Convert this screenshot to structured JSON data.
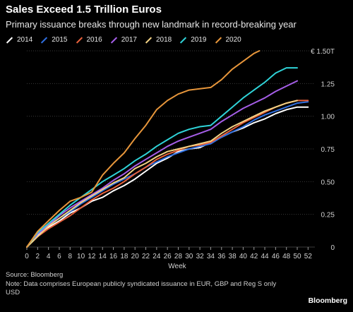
{
  "header": {
    "title": "Sales Exceed 1.5 Trillion Euros",
    "subtitle": "Primary issuance breaks through new landmark in record-breaking year"
  },
  "footer": {
    "source": "Source: Bloomberg",
    "note": "Note: Data comprises European publicly syndicated issuance in EUR, GBP and Reg S only USD",
    "brand": "Bloomberg"
  },
  "chart_data": {
    "type": "line",
    "title": "Sales Exceed 1.5 Trillion Euros",
    "subtitle": "Primary issuance breaks through new landmark in record-breaking year",
    "xlabel": "Week",
    "ylabel": "",
    "xlim": [
      0,
      53
    ],
    "ylim": [
      0,
      1.5
    ],
    "x_ticks": [
      "0",
      "2",
      "4",
      "6",
      "8",
      "10",
      "12",
      "14",
      "16",
      "18",
      "20",
      "22",
      "24",
      "26",
      "28",
      "30",
      "32",
      "34",
      "36",
      "38",
      "40",
      "42",
      "44",
      "46",
      "48",
      "50",
      "52"
    ],
    "y_ticks": [
      {
        "value": 0,
        "label": "0"
      },
      {
        "value": 0.25,
        "label": "0.25"
      },
      {
        "value": 0.5,
        "label": "0.50"
      },
      {
        "value": 0.75,
        "label": "0.75"
      },
      {
        "value": 1.0,
        "label": "1.00"
      },
      {
        "value": 1.25,
        "label": "1.25"
      },
      {
        "value": 1.5,
        "label": "€ 1.50T"
      }
    ],
    "grid": true,
    "legend_position": "top-left",
    "series": [
      {
        "name": "2014",
        "color": "#ffffff",
        "x": [
          0,
          2,
          4,
          6,
          8,
          10,
          12,
          14,
          16,
          18,
          20,
          22,
          24,
          26,
          28,
          30,
          32,
          34,
          36,
          38,
          40,
          42,
          44,
          46,
          48,
          50,
          52
        ],
        "values": [
          0,
          0.09,
          0.15,
          0.2,
          0.26,
          0.3,
          0.35,
          0.38,
          0.43,
          0.47,
          0.52,
          0.58,
          0.64,
          0.68,
          0.73,
          0.75,
          0.76,
          0.8,
          0.84,
          0.88,
          0.91,
          0.95,
          0.98,
          1.02,
          1.05,
          1.07,
          1.07
        ]
      },
      {
        "name": "2015",
        "color": "#2f6fe0",
        "x": [
          0,
          2,
          4,
          6,
          8,
          10,
          12,
          14,
          16,
          18,
          20,
          22,
          24,
          26,
          28,
          30,
          32,
          34,
          36,
          38,
          40,
          42,
          44,
          46,
          48,
          50,
          52
        ],
        "values": [
          0,
          0.1,
          0.17,
          0.22,
          0.27,
          0.33,
          0.38,
          0.43,
          0.48,
          0.52,
          0.56,
          0.61,
          0.65,
          0.69,
          0.72,
          0.75,
          0.77,
          0.79,
          0.84,
          0.88,
          0.92,
          0.97,
          1.01,
          1.04,
          1.07,
          1.1,
          1.11
        ]
      },
      {
        "name": "2016",
        "color": "#e8613c",
        "x": [
          0,
          2,
          4,
          6,
          8,
          10,
          12,
          14,
          16,
          18,
          20,
          22,
          24,
          26,
          28,
          30,
          32,
          34,
          36,
          38,
          40,
          42,
          44,
          46,
          48,
          50,
          52
        ],
        "values": [
          0,
          0.08,
          0.14,
          0.19,
          0.24,
          0.3,
          0.36,
          0.41,
          0.45,
          0.5,
          0.56,
          0.61,
          0.67,
          0.71,
          0.74,
          0.77,
          0.78,
          0.8,
          0.85,
          0.9,
          0.95,
          0.99,
          1.03,
          1.07,
          1.1,
          1.12,
          1.12
        ]
      },
      {
        "name": "2017",
        "color": "#a55ee8",
        "x": [
          0,
          2,
          4,
          6,
          8,
          10,
          12,
          14,
          16,
          18,
          20,
          22,
          24,
          26,
          28,
          30,
          32,
          34,
          36,
          38,
          40,
          42,
          44,
          46,
          48,
          50
        ],
        "values": [
          0,
          0.1,
          0.17,
          0.24,
          0.3,
          0.35,
          0.4,
          0.45,
          0.51,
          0.56,
          0.62,
          0.67,
          0.72,
          0.77,
          0.81,
          0.84,
          0.87,
          0.9,
          0.96,
          1.01,
          1.06,
          1.1,
          1.14,
          1.19,
          1.23,
          1.27
        ]
      },
      {
        "name": "2018",
        "color": "#f2d285",
        "x": [
          0,
          2,
          4,
          6,
          8,
          10,
          12,
          14,
          16,
          18,
          20,
          22,
          24,
          26,
          28,
          30,
          32,
          34,
          36,
          38,
          40,
          42,
          44,
          46,
          48,
          50
        ],
        "values": [
          0,
          0.08,
          0.16,
          0.22,
          0.28,
          0.34,
          0.39,
          0.44,
          0.49,
          0.53,
          0.6,
          0.64,
          0.69,
          0.73,
          0.75,
          0.77,
          0.79,
          0.81,
          0.87,
          0.92,
          0.96,
          1.0,
          1.04,
          1.07,
          1.1,
          1.12
        ]
      },
      {
        "name": "2019",
        "color": "#2fd3d8",
        "x": [
          0,
          2,
          4,
          6,
          8,
          10,
          12,
          14,
          16,
          18,
          20,
          22,
          24,
          26,
          28,
          30,
          32,
          34,
          36,
          38,
          40,
          42,
          44,
          46,
          48,
          50
        ],
        "values": [
          0,
          0.11,
          0.18,
          0.25,
          0.32,
          0.38,
          0.44,
          0.5,
          0.55,
          0.6,
          0.66,
          0.71,
          0.77,
          0.82,
          0.87,
          0.9,
          0.92,
          0.93,
          1.0,
          1.07,
          1.14,
          1.2,
          1.26,
          1.33,
          1.37,
          1.37
        ]
      },
      {
        "name": "2020",
        "color": "#e7963b",
        "x": [
          0,
          2,
          4,
          6,
          8,
          10,
          12,
          14,
          16,
          18,
          20,
          22,
          24,
          26,
          28,
          30,
          32,
          34,
          36,
          38,
          40,
          42,
          43
        ],
        "values": [
          0,
          0.12,
          0.2,
          0.28,
          0.35,
          0.38,
          0.42,
          0.55,
          0.64,
          0.72,
          0.83,
          0.93,
          1.05,
          1.12,
          1.17,
          1.2,
          1.21,
          1.22,
          1.28,
          1.36,
          1.42,
          1.48,
          1.5
        ]
      }
    ]
  }
}
